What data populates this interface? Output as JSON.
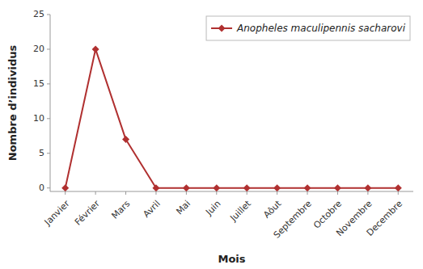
{
  "chart_data": {
    "type": "line",
    "categories": [
      "Janvier",
      "Février",
      "Mars",
      "Avril",
      "Mai",
      "Juin",
      "Juillet",
      "Aôut",
      "Septembre",
      "Octobre",
      "Novembre",
      "Decembre"
    ],
    "series": [
      {
        "name": "Anopheles maculipennis sacharovi",
        "color": "#b03030",
        "marker": "diamond",
        "values": [
          0,
          20,
          7,
          0,
          0,
          0,
          0,
          0,
          0,
          0,
          0,
          0
        ]
      }
    ],
    "xlabel": "Mois",
    "ylabel": "Nombre d’individus",
    "ylim": [
      -0.5,
      25
    ],
    "yticks": [
      0,
      5,
      10,
      15,
      20,
      25
    ],
    "grid": false,
    "legend": "upper right"
  }
}
